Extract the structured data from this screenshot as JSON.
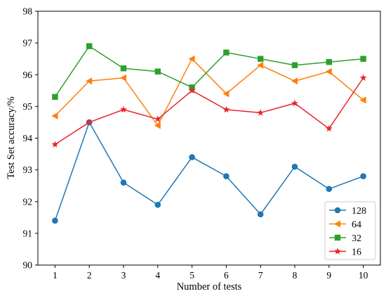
{
  "chart_data": {
    "type": "line",
    "title": "",
    "xlabel": "Number of tests",
    "ylabel": "Test Set accuracy/%",
    "x": [
      1,
      2,
      3,
      4,
      5,
      6,
      7,
      8,
      9,
      10
    ],
    "xlim": [
      0.5,
      10.5
    ],
    "ylim": [
      90,
      98
    ],
    "xticks": [
      "1",
      "2",
      "3",
      "4",
      "5",
      "6",
      "7",
      "8",
      "9",
      "10"
    ],
    "yticks": [
      "90",
      "91",
      "92",
      "93",
      "94",
      "95",
      "96",
      "97",
      "98"
    ],
    "grid": false,
    "legend_position": "bottom-right",
    "series": [
      {
        "name": "128",
        "color": "#1f77b4",
        "marker": "circle",
        "values": [
          91.4,
          94.5,
          92.6,
          91.9,
          93.4,
          92.8,
          91.6,
          93.1,
          92.4,
          92.8
        ]
      },
      {
        "name": "64",
        "color": "#ff7f0e",
        "marker": "triangle-left",
        "values": [
          94.7,
          95.8,
          95.9,
          94.4,
          96.5,
          95.4,
          96.3,
          95.8,
          96.1,
          95.2
        ]
      },
      {
        "name": "32",
        "color": "#2ca02c",
        "marker": "square",
        "values": [
          95.3,
          96.9,
          96.2,
          96.1,
          95.6,
          96.7,
          96.5,
          96.3,
          96.4,
          96.5
        ]
      },
      {
        "name": "16",
        "color": "#e8262a",
        "marker": "star",
        "values": [
          93.8,
          94.5,
          94.9,
          94.6,
          95.5,
          94.9,
          94.8,
          95.1,
          94.3,
          95.9
        ]
      }
    ]
  }
}
